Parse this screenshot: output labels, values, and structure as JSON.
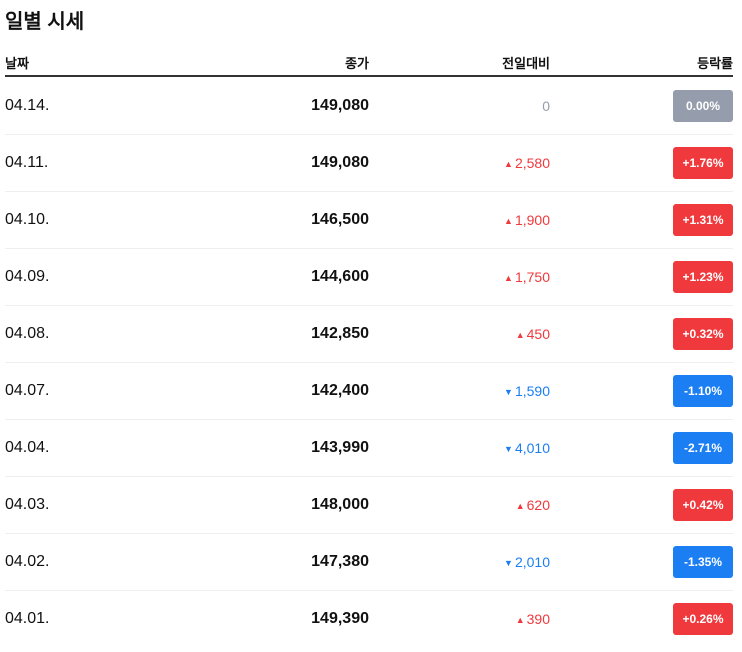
{
  "title": "일별 시세",
  "columns": {
    "date": "날짜",
    "close": "종가",
    "change": "전일대비",
    "rate": "등락률"
  },
  "colors": {
    "up": "#f0393d",
    "down": "#1b7ef3",
    "flat": "#959cab"
  },
  "rows": [
    {
      "date": "04.14.",
      "close": "149,080",
      "change": "0",
      "rate": "0.00%",
      "dir": "flat"
    },
    {
      "date": "04.11.",
      "close": "149,080",
      "change": "2,580",
      "rate": "+1.76%",
      "dir": "up"
    },
    {
      "date": "04.10.",
      "close": "146,500",
      "change": "1,900",
      "rate": "+1.31%",
      "dir": "up"
    },
    {
      "date": "04.09.",
      "close": "144,600",
      "change": "1,750",
      "rate": "+1.23%",
      "dir": "up"
    },
    {
      "date": "04.08.",
      "close": "142,850",
      "change": "450",
      "rate": "+0.32%",
      "dir": "up"
    },
    {
      "date": "04.07.",
      "close": "142,400",
      "change": "1,590",
      "rate": "-1.10%",
      "dir": "down"
    },
    {
      "date": "04.04.",
      "close": "143,990",
      "change": "4,010",
      "rate": "-2.71%",
      "dir": "down"
    },
    {
      "date": "04.03.",
      "close": "148,000",
      "change": "620",
      "rate": "+0.42%",
      "dir": "up"
    },
    {
      "date": "04.02.",
      "close": "147,380",
      "change": "2,010",
      "rate": "-1.35%",
      "dir": "down"
    },
    {
      "date": "04.01.",
      "close": "149,390",
      "change": "390",
      "rate": "+0.26%",
      "dir": "up"
    }
  ]
}
